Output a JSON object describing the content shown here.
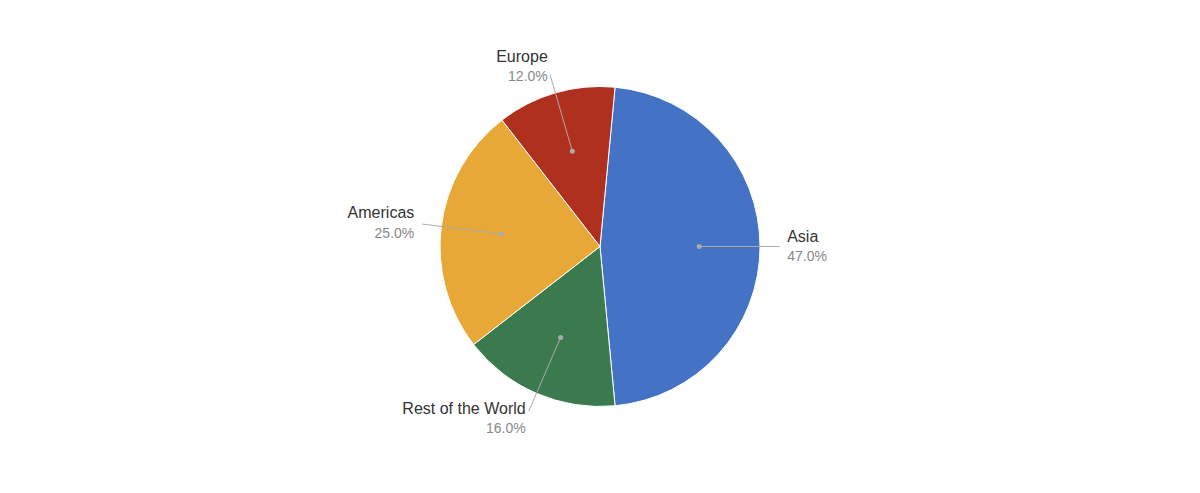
{
  "chart_data": {
    "type": "pie",
    "categories": [
      "Asia",
      "Rest of the World",
      "Americas",
      "Europe"
    ],
    "values": [
      47.0,
      16.0,
      25.0,
      12.0
    ],
    "value_labels": [
      "47.0%",
      "16.0%",
      "25.0%",
      "12.0%"
    ],
    "colors": [
      "#4472C4",
      "#3B7A4E",
      "#E8A838",
      "#B03020"
    ],
    "data_labels": true
  }
}
